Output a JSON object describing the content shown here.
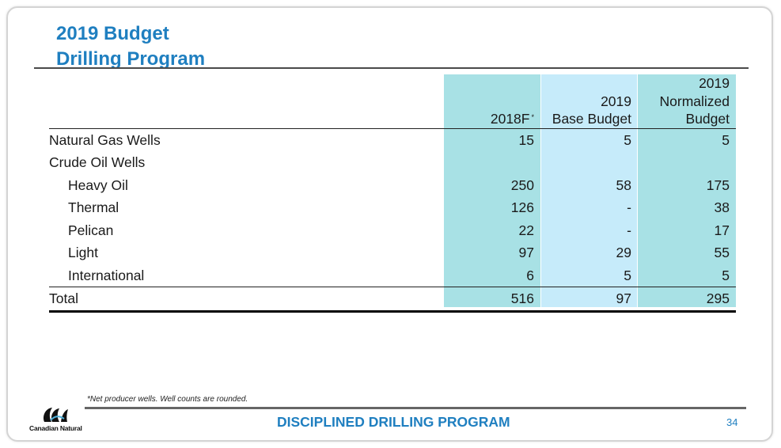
{
  "slide": {
    "title_line1": "2019 Budget",
    "title_line2": "Drilling Program",
    "footnote": "*Net producer wells. Well counts are rounded.",
    "footer_title": "DISCIPLINED DRILLING PROGRAM",
    "page_number": "34",
    "logo_text": "Canadian Natural",
    "accent_color": "#1f7fc0"
  },
  "table": {
    "headers": {
      "col1": {
        "line1": "2018F",
        "marker": "*"
      },
      "col2": {
        "line1": "2019",
        "line2": "Base Budget"
      },
      "col3": {
        "line1": "2019",
        "line2": "Normalized",
        "line3": "Budget"
      }
    },
    "column_colors": [
      "#a8e1e5",
      "#c6ebfa",
      "#a8e1e5"
    ],
    "rows": [
      {
        "label": "Natural Gas Wells",
        "v2018": "15",
        "base": "5",
        "norm": "5"
      },
      {
        "label": "Crude Oil Wells",
        "v2018": "",
        "base": "",
        "norm": ""
      },
      {
        "label": "Heavy Oil",
        "v2018": "250",
        "base": "58",
        "norm": "175"
      },
      {
        "label": "Thermal",
        "v2018": "126",
        "base": "-",
        "norm": "38"
      },
      {
        "label": "Pelican",
        "v2018": "22",
        "base": "-",
        "norm": "17"
      },
      {
        "label": "Light",
        "v2018": "97",
        "base": "29",
        "norm": "55"
      },
      {
        "label": "International",
        "v2018": "6",
        "base": "5",
        "norm": "5"
      }
    ],
    "total": {
      "label": "Total",
      "v2018": "516",
      "base": "97",
      "norm": "295"
    }
  }
}
